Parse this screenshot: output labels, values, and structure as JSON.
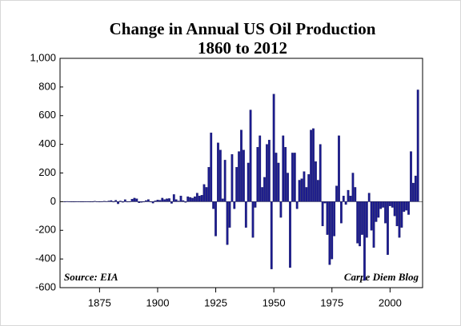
{
  "chart_data": {
    "type": "bar",
    "title": "Change in Annual US Oil Production",
    "subtitle": "1860 to 2012",
    "annotations": [
      "Source: EIA",
      "Carpe Diem Blog"
    ],
    "color": "#1c1c8f",
    "x": [
      1860,
      1861,
      1862,
      1863,
      1864,
      1865,
      1866,
      1867,
      1868,
      1869,
      1870,
      1871,
      1872,
      1873,
      1874,
      1875,
      1876,
      1877,
      1878,
      1879,
      1880,
      1881,
      1882,
      1883,
      1884,
      1885,
      1886,
      1887,
      1888,
      1889,
      1890,
      1891,
      1892,
      1893,
      1894,
      1895,
      1896,
      1897,
      1898,
      1899,
      1900,
      1901,
      1902,
      1903,
      1904,
      1905,
      1906,
      1907,
      1908,
      1909,
      1910,
      1911,
      1912,
      1913,
      1914,
      1915,
      1916,
      1917,
      1918,
      1919,
      1920,
      1921,
      1922,
      1923,
      1924,
      1925,
      1926,
      1927,
      1928,
      1929,
      1930,
      1931,
      1932,
      1933,
      1934,
      1935,
      1936,
      1937,
      1938,
      1939,
      1940,
      1941,
      1942,
      1943,
      1944,
      1945,
      1946,
      1947,
      1948,
      1949,
      1950,
      1951,
      1952,
      1953,
      1954,
      1955,
      1956,
      1957,
      1958,
      1959,
      1960,
      1961,
      1962,
      1963,
      1964,
      1965,
      1966,
      1967,
      1968,
      1969,
      1970,
      1971,
      1972,
      1973,
      1974,
      1975,
      1976,
      1977,
      1978,
      1979,
      1980,
      1981,
      1982,
      1983,
      1984,
      1985,
      1986,
      1987,
      1988,
      1989,
      1990,
      1991,
      1992,
      1993,
      1994,
      1995,
      1996,
      1997,
      1998,
      1999,
      2000,
      2001,
      2002,
      2003,
      2004,
      2005,
      2006,
      2007,
      2008,
      2009,
      2010,
      2011,
      2012
    ],
    "values": [
      0,
      2,
      1,
      -1,
      -1,
      1,
      1,
      -1,
      0,
      1,
      1,
      0,
      0,
      3,
      1,
      -2,
      1,
      4,
      2,
      5,
      8,
      -3,
      10,
      -15,
      5,
      -4,
      14,
      -3,
      -2,
      18,
      25,
      20,
      -8,
      -5,
      -3,
      8,
      15,
      0,
      -10,
      6,
      12,
      10,
      25,
      15,
      20,
      22,
      -12,
      50,
      15,
      5,
      40,
      8,
      -5,
      35,
      30,
      25,
      35,
      60,
      40,
      45,
      120,
      100,
      240,
      480,
      -50,
      -240,
      410,
      360,
      20,
      290,
      -300,
      -180,
      330,
      -50,
      240,
      350,
      500,
      360,
      -180,
      270,
      640,
      -250,
      -40,
      380,
      460,
      100,
      170,
      400,
      430,
      -470,
      750,
      340,
      270,
      -110,
      460,
      380,
      200,
      -460,
      340,
      340,
      -50,
      150,
      160,
      210,
      100,
      190,
      500,
      510,
      280,
      150,
      400,
      -170,
      -10,
      -230,
      -440,
      -400,
      -240,
      110,
      460,
      -150,
      40,
      -20,
      80,
      40,
      200,
      100,
      -290,
      -310,
      -230,
      -550,
      -250,
      60,
      -200,
      -320,
      -140,
      -110,
      -50,
      -40,
      -150,
      -370,
      -30,
      -40,
      -100,
      -170,
      -250,
      -180,
      -70,
      -60,
      -90,
      350,
      130,
      180,
      780
    ],
    "xlim": [
      1858,
      2014
    ],
    "xticks": [
      1875,
      1900,
      1925,
      1950,
      1975,
      2000
    ],
    "ylim": [
      -600,
      1000
    ],
    "yticks": [
      -600,
      -400,
      -200,
      0,
      200,
      400,
      600,
      800,
      {
        "value": 1000,
        "label": "1,000"
      }
    ]
  }
}
